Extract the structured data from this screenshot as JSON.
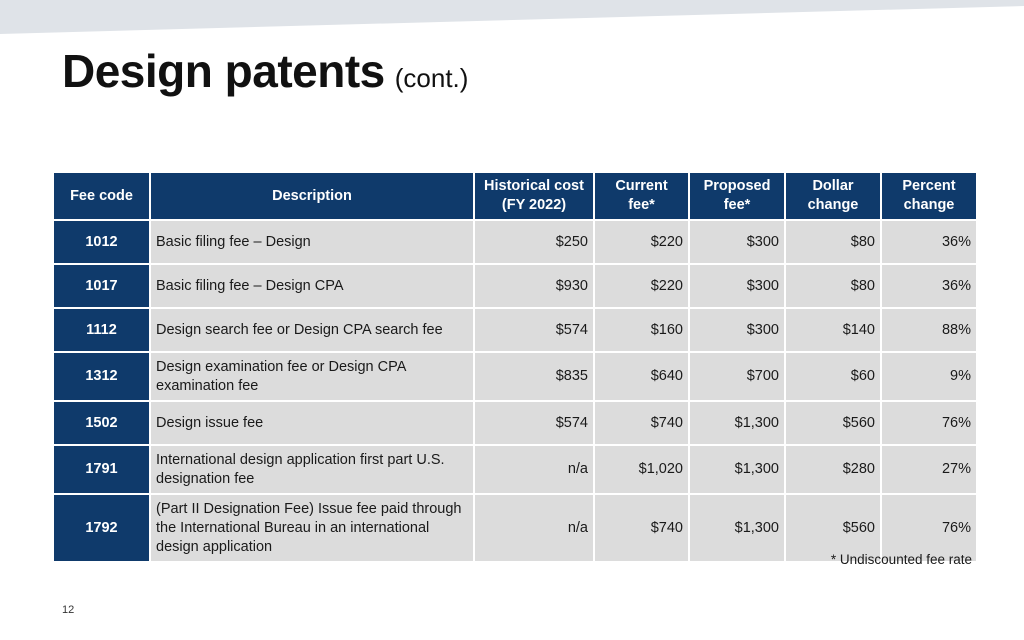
{
  "slide": {
    "title": "Design patents",
    "title_suffix": "(cont.)",
    "footnote": "* Undiscounted fee rate",
    "page_number": "12"
  },
  "colors": {
    "header_bg": "#0f3a6b",
    "cell_bg": "#dcdcdc",
    "top_band": "#dfe3e8"
  },
  "table": {
    "headers": {
      "fee_code": "Fee code",
      "description": "Description",
      "historical_cost_line1": "Historical cost",
      "historical_cost_line2": "(FY 2022)",
      "current_fee_line1": "Current",
      "current_fee_line2": "fee*",
      "proposed_fee_line1": "Proposed",
      "proposed_fee_line2": "fee*",
      "dollar_change_line1": "Dollar",
      "dollar_change_line2": "change",
      "percent_change_line1": "Percent",
      "percent_change_line2": "change"
    },
    "rows": [
      {
        "code": "1012",
        "description": "Basic filing fee – Design",
        "historical": "$250",
        "current": "$220",
        "proposed": "$300",
        "dollar_change": "$80",
        "percent_change": "36%"
      },
      {
        "code": "1017",
        "description": "Basic filing fee – Design CPA",
        "historical": "$930",
        "current": "$220",
        "proposed": "$300",
        "dollar_change": "$80",
        "percent_change": "36%"
      },
      {
        "code": "1112",
        "description": "Design search fee or Design CPA search fee",
        "historical": "$574",
        "current": "$160",
        "proposed": "$300",
        "dollar_change": "$140",
        "percent_change": "88%"
      },
      {
        "code": "1312",
        "description": "Design examination fee or Design CPA examination fee",
        "historical": "$835",
        "current": "$640",
        "proposed": "$700",
        "dollar_change": "$60",
        "percent_change": "9%"
      },
      {
        "code": "1502",
        "description": "Design issue fee",
        "historical": "$574",
        "current": "$740",
        "proposed": "$1,300",
        "dollar_change": "$560",
        "percent_change": "76%"
      },
      {
        "code": "1791",
        "description": "International design application first part U.S. designation fee",
        "historical": "n/a",
        "current": "$1,020",
        "proposed": "$1,300",
        "dollar_change": "$280",
        "percent_change": "27%"
      },
      {
        "code": "1792",
        "description": "(Part II Designation Fee) Issue fee paid through the International Bureau in an international design application",
        "historical": "n/a",
        "current": "$740",
        "proposed": "$1,300",
        "dollar_change": "$560",
        "percent_change": "76%"
      }
    ]
  }
}
